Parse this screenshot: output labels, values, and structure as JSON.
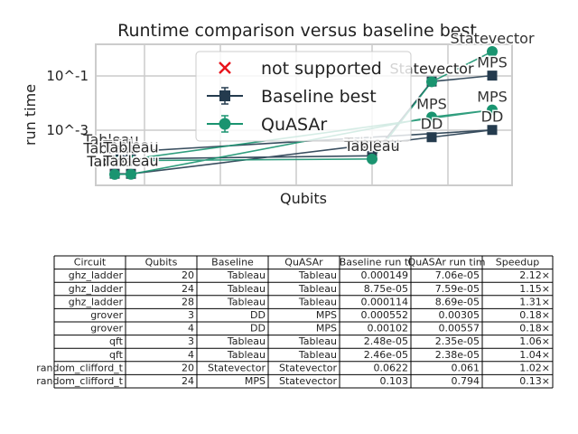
{
  "chart_data": {
    "type": "line",
    "title": "Runtime comparison versus baseline best",
    "xlabel": "Qubits",
    "ylabel": "run time",
    "yscale": "log",
    "ytick_labels": [
      "10^-1",
      "10^-3"
    ],
    "ytick_values": [
      0.1,
      0.001
    ],
    "grid": true,
    "legend_placement": "top-center",
    "legend": [
      {
        "label": "not supported",
        "marker": "x",
        "color": "#e8141c"
      },
      {
        "label": "Baseline best",
        "marker": "square",
        "color": "#243b4e"
      },
      {
        "label": "QuASAr",
        "marker": "circle",
        "color": "#1a9470"
      }
    ],
    "series": [
      {
        "name": "Baseline best",
        "color": "#243b4e",
        "points": [
          {
            "x": 20,
            "y": 0.000149,
            "label": "Tableau"
          },
          {
            "x": 24,
            "y": 8.75e-05,
            "label": "Tableau"
          },
          {
            "x": 28,
            "y": 0.000114,
            "label": "Tableau"
          },
          {
            "x": 3,
            "y": 0.000552,
            "label": "DD"
          },
          {
            "x": 4,
            "y": 0.00102,
            "label": "DD"
          },
          {
            "x": 3,
            "y": 2.48e-05,
            "label": "Tableau"
          },
          {
            "x": 4,
            "y": 2.46e-05,
            "label": "Tableau"
          },
          {
            "x": 20,
            "y": 0.0622,
            "label": "Statevector"
          },
          {
            "x": 24,
            "y": 0.103,
            "label": "MPS"
          }
        ]
      },
      {
        "name": "QuASAr",
        "color": "#1a9470",
        "points": [
          {
            "x": 20,
            "y": 7.06e-05,
            "label": "Tableau"
          },
          {
            "x": 24,
            "y": 7.59e-05,
            "label": "Tableau"
          },
          {
            "x": 28,
            "y": 8.69e-05,
            "label": "Tableau"
          },
          {
            "x": 3,
            "y": 0.00305,
            "label": "MPS"
          },
          {
            "x": 4,
            "y": 0.00557,
            "label": "MPS"
          },
          {
            "x": 3,
            "y": 2.35e-05,
            "label": "Tableau"
          },
          {
            "x": 4,
            "y": 2.38e-05,
            "label": "Tableau"
          },
          {
            "x": 20,
            "y": 0.061,
            "label": "Statevector"
          },
          {
            "x": 24,
            "y": 0.794,
            "label": "Statevector"
          }
        ]
      }
    ]
  },
  "table": {
    "headers": [
      "Circuit",
      "Qubits",
      "Baseline",
      "QuASAr",
      "Baseline run ti",
      "QuASAr run tim",
      "Speedup"
    ],
    "rows": [
      [
        "ghz_ladder",
        "20",
        "Tableau",
        "Tableau",
        "0.000149",
        "7.06e-05",
        "2.12×"
      ],
      [
        "ghz_ladder",
        "24",
        "Tableau",
        "Tableau",
        "8.75e-05",
        "7.59e-05",
        "1.15×"
      ],
      [
        "ghz_ladder",
        "28",
        "Tableau",
        "Tableau",
        "0.000114",
        "8.69e-05",
        "1.31×"
      ],
      [
        "grover",
        "3",
        "DD",
        "MPS",
        "0.000552",
        "0.00305",
        "0.18×"
      ],
      [
        "grover",
        "4",
        "DD",
        "MPS",
        "0.00102",
        "0.00557",
        "0.18×"
      ],
      [
        "qft",
        "3",
        "Tableau",
        "Tableau",
        "2.48e-05",
        "2.35e-05",
        "1.06×"
      ],
      [
        "qft",
        "4",
        "Tableau",
        "Tableau",
        "2.46e-05",
        "2.38e-05",
        "1.04×"
      ],
      [
        "random_clifford_t",
        "20",
        "Statevector",
        "Statevector",
        "0.0622",
        "0.061",
        "1.02×"
      ],
      [
        "random_clifford_t",
        "24",
        "MPS",
        "Statevector",
        "0.103",
        "0.794",
        "0.13×"
      ]
    ]
  }
}
